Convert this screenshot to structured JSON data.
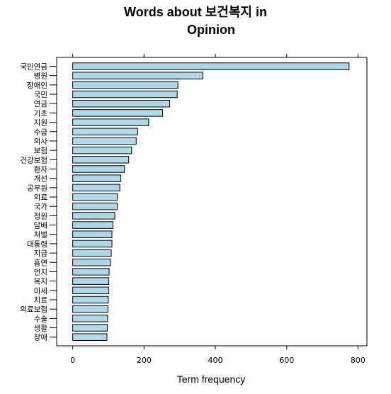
{
  "chart_data": {
    "type": "bar",
    "orientation": "horizontal",
    "title_line1": "Words about 보건복지 in",
    "title_line2": "Opinion",
    "xlabel": "Term frequency",
    "xlim": [
      -45,
      825
    ],
    "xticks": [
      0,
      200,
      400,
      600,
      800
    ],
    "xtick_labels": [
      "0",
      "200",
      "400",
      "600",
      "800"
    ],
    "bar_color": "#ADD8E6",
    "categories": [
      "국민연금",
      "병원",
      "장애인",
      "국민",
      "연금",
      "기초",
      "지원",
      "수급",
      "의사",
      "보험",
      "건강보험",
      "환자",
      "개선",
      "공무원",
      "의료",
      "국가",
      "정원",
      "담배",
      "처벌",
      "대통령",
      "지급",
      "흡연",
      "먼지",
      "복지",
      "미세",
      "치료",
      "의료보험",
      "수술",
      "생활",
      "장애"
    ],
    "values": [
      775,
      365,
      295,
      293,
      272,
      252,
      213,
      182,
      178,
      165,
      157,
      145,
      135,
      132,
      125,
      125,
      118,
      113,
      110,
      110,
      108,
      106,
      102,
      101,
      101,
      100,
      99,
      98,
      97,
      96
    ]
  }
}
